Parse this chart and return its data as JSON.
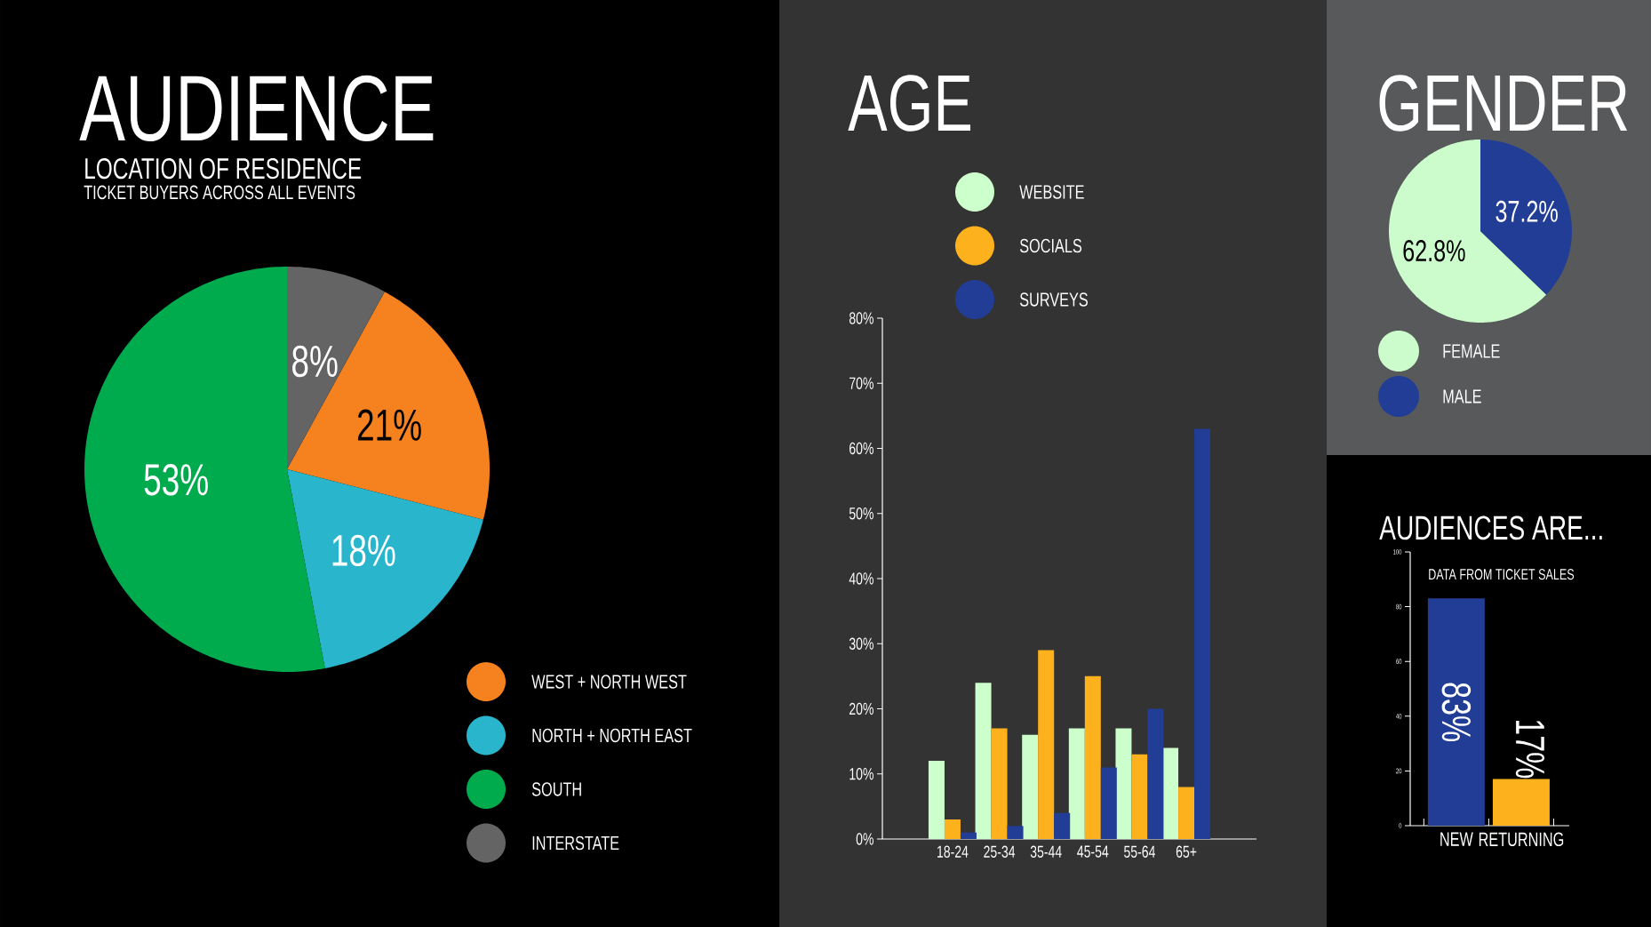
{
  "chart_data": [
    {
      "type": "pie",
      "title": "AUDIENCE",
      "subtitle": "LOCATION OF RESIDENCE",
      "annotations": [
        "TICKET BUYERS ACROSS ALL EVENTS"
      ],
      "categories": [
        "WEST + NORTH WEST",
        "NORTH + NORTH EAST",
        "SOUTH",
        "INTERSTATE"
      ],
      "values": [
        21,
        18,
        53,
        8
      ],
      "colors": [
        "#f5821f",
        "#29b6cc",
        "#00ab4e",
        "#646464"
      ],
      "value_labels": [
        "21%",
        "18%",
        "53%",
        "8%"
      ],
      "legend": "bottom right"
    },
    {
      "type": "bar",
      "title": "AGE",
      "categories": [
        "18-24",
        "25-34",
        "35-44",
        "45-54",
        "55-64",
        "65+"
      ],
      "series": [
        {
          "name": "WEBSITE",
          "color": "#ccffcc",
          "values": [
            12,
            24,
            16,
            17,
            17,
            14
          ]
        },
        {
          "name": "SOCIALS",
          "color": "#fdb11c",
          "values": [
            3,
            17,
            29,
            25,
            13,
            8
          ]
        },
        {
          "name": "SURVEYS",
          "color": "#223d96",
          "values": [
            1,
            2,
            4,
            11,
            20,
            63
          ]
        }
      ],
      "ylim": [
        0,
        80
      ],
      "yticks": [
        {
          "value": 0,
          "label": "0%"
        },
        {
          "value": 10,
          "label": "10%"
        },
        {
          "value": 20,
          "label": "20%"
        },
        {
          "value": 30,
          "label": "30%"
        },
        {
          "value": 40,
          "label": "40%"
        },
        {
          "value": 50,
          "label": "50%"
        },
        {
          "value": 60,
          "label": "60%"
        },
        {
          "value": 70,
          "label": "70%"
        },
        {
          "value": 80,
          "label": "80%"
        }
      ],
      "legend": "top left"
    },
    {
      "type": "pie",
      "title": "GENDER",
      "categories": [
        "FEMALE",
        "MALE"
      ],
      "values": [
        62.8,
        37.2
      ],
      "colors": [
        "#ccfccc",
        "#223d96"
      ],
      "value_labels": [
        "62.8%",
        "37.2%"
      ],
      "legend": "bottom"
    },
    {
      "type": "bar",
      "title": "AUDIENCES ARE...",
      "subtitle": "DATA FROM TICKET SALES",
      "categories": [
        "NEW",
        "RETURNING"
      ],
      "values": [
        83,
        17
      ],
      "colors": [
        "#223d96",
        "#fdb11c"
      ],
      "value_labels": [
        "83%",
        "17%"
      ],
      "ylim": [
        0,
        100
      ],
      "yticks": [
        0,
        20,
        40,
        60,
        80,
        100
      ]
    }
  ]
}
